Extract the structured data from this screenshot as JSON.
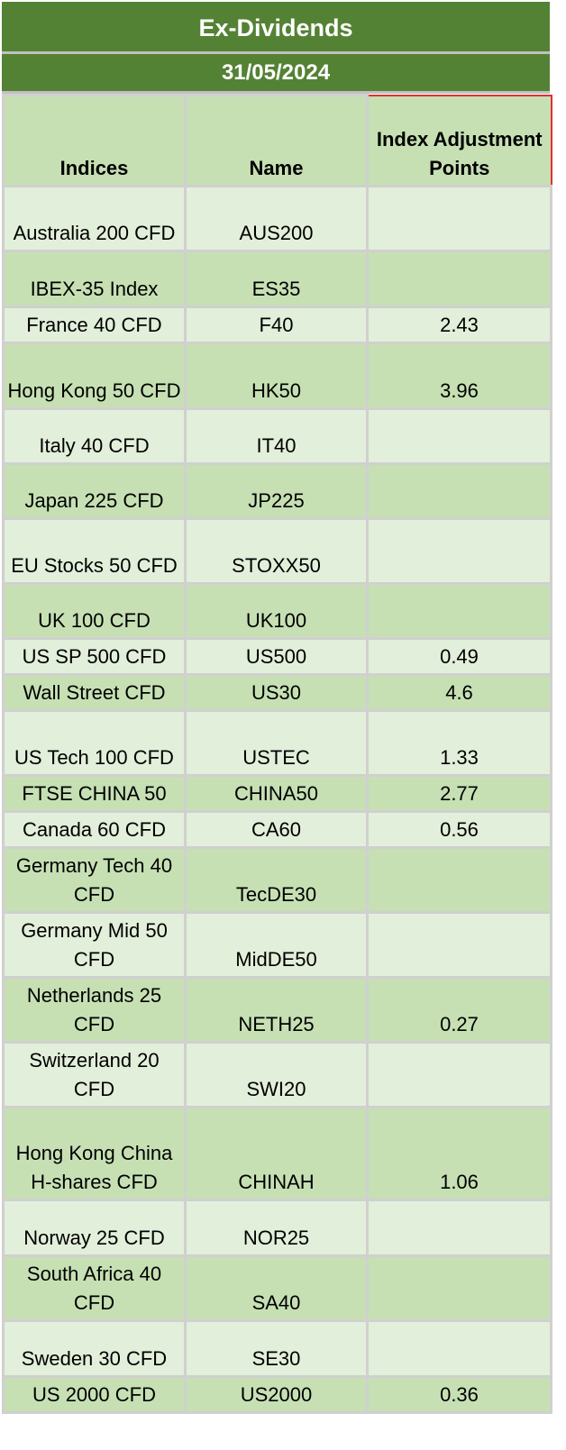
{
  "title": "Ex-Dividends",
  "date": "31/05/2024",
  "columns": [
    "Indices",
    "Name",
    "Index Adjustment Points"
  ],
  "rows": [
    {
      "index": "Australia 200 CFD",
      "name": "AUS200",
      "points": ""
    },
    {
      "index": "IBEX-35 Index",
      "name": "ES35",
      "points": ""
    },
    {
      "index": "France 40 CFD",
      "name": "F40",
      "points": "2.43"
    },
    {
      "index": "Hong Kong 50 CFD",
      "name": "HK50",
      "points": "3.96"
    },
    {
      "index": "Italy 40 CFD",
      "name": "IT40",
      "points": ""
    },
    {
      "index": "Japan 225 CFD",
      "name": "JP225",
      "points": ""
    },
    {
      "index": "EU Stocks 50 CFD",
      "name": "STOXX50",
      "points": ""
    },
    {
      "index": "UK 100 CFD",
      "name": "UK100",
      "points": ""
    },
    {
      "index": "US SP 500 CFD",
      "name": "US500",
      "points": "0.49"
    },
    {
      "index": "Wall Street CFD",
      "name": "US30",
      "points": "4.6"
    },
    {
      "index": "US Tech 100 CFD",
      "name": "USTEC",
      "points": "1.33"
    },
    {
      "index": "FTSE CHINA 50",
      "name": "CHINA50",
      "points": "2.77"
    },
    {
      "index": "Canada 60 CFD",
      "name": "CA60",
      "points": "0.56"
    },
    {
      "index": "Germany Tech 40 CFD",
      "name": "TecDE30",
      "points": ""
    },
    {
      "index": "Germany Mid 50 CFD",
      "name": "MidDE50",
      "points": ""
    },
    {
      "index": "Netherlands 25 CFD",
      "name": "NETH25",
      "points": "0.27"
    },
    {
      "index": "Switzerland 20 CFD",
      "name": "SWI20",
      "points": ""
    },
    {
      "index": "Hong Kong China H-shares CFD",
      "name": "CHINAH",
      "points": "1.06"
    },
    {
      "index": "Norway 25 CFD",
      "name": "NOR25",
      "points": ""
    },
    {
      "index": "South Africa 40 CFD",
      "name": "SA40",
      "points": ""
    },
    {
      "index": "Sweden 30 CFD",
      "name": "SE30",
      "points": ""
    },
    {
      "index": "US 2000 CFD",
      "name": "US2000",
      "points": "0.36"
    }
  ]
}
